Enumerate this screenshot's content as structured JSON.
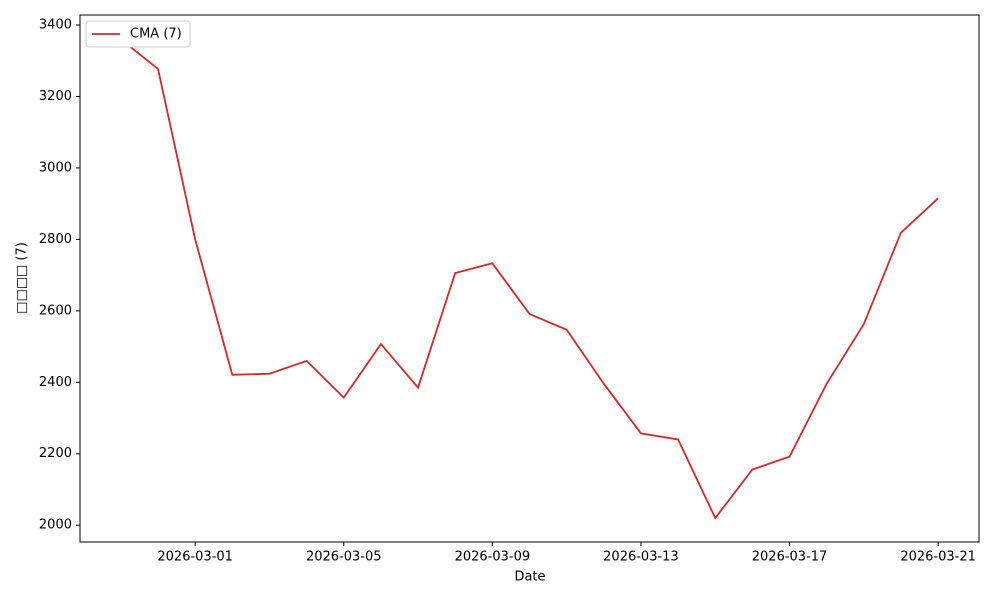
{
  "chart_data": {
    "type": "line",
    "x_label": "Date",
    "y_label": "□□□□ (7)",
    "x": [
      "2026-02-27",
      "2026-02-28",
      "2026-03-01",
      "2026-03-02",
      "2026-03-03",
      "2026-03-04",
      "2026-03-05",
      "2026-03-06",
      "2026-03-07",
      "2026-03-08",
      "2026-03-09",
      "2026-03-10",
      "2026-03-11",
      "2026-03-12",
      "2026-03-13",
      "2026-03-14",
      "2026-03-15",
      "2026-03-16",
      "2026-03-17",
      "2026-03-18",
      "2026-03-19",
      "2026-03-20",
      "2026-03-21"
    ],
    "series": [
      {
        "name": "CMA (7)",
        "color": "#d62728",
        "values": [
          3360,
          3277,
          2800,
          2421,
          2424,
          2460,
          2357,
          2507,
          2385,
          2706,
          2733,
          2591,
          2547,
          2396,
          2257,
          2240,
          2020,
          2156,
          2192,
          2396,
          2563,
          2819,
          2915
        ]
      }
    ],
    "xticks": [
      "2026-03-01",
      "2026-03-05",
      "2026-03-09",
      "2026-03-13",
      "2026-03-17",
      "2026-03-21"
    ],
    "ylim": [
      1953,
      3428
    ],
    "yticks": [
      2000,
      2200,
      2400,
      2600,
      2800,
      3000,
      3200,
      3400
    ],
    "legend": "upper left",
    "grid": false
  }
}
